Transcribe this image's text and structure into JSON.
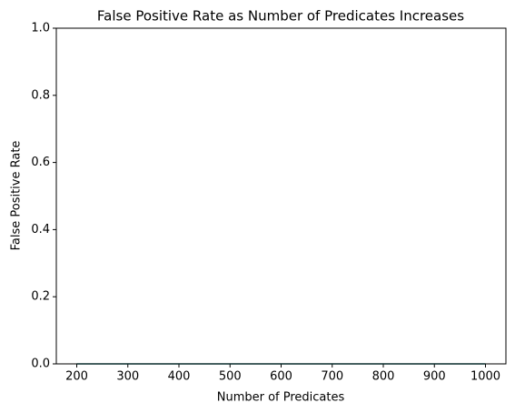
{
  "chart_data": {
    "type": "line",
    "title": "False Positive Rate as Number of Predicates Increases",
    "x_label": "Number of Predicates",
    "y_label": "False Positive Rate",
    "x": [
      200,
      300,
      400,
      500,
      600,
      700,
      800,
      900,
      1000
    ],
    "series": [
      {
        "color": "#1a8080",
        "values": [
          0,
          0,
          0,
          0,
          0,
          0,
          0,
          0,
          0
        ]
      }
    ],
    "xlim": [
      160,
      1040
    ],
    "xticks": [
      200,
      300,
      400,
      500,
      600,
      700,
      800,
      900,
      1000
    ],
    "ylim": [
      0,
      1
    ],
    "yticks": [
      {
        "value": 0,
        "label": "0.0"
      },
      {
        "value": 0.2,
        "label": "0.2"
      },
      {
        "value": 0.4,
        "label": "0.4"
      },
      {
        "value": 0.6,
        "label": "0.6"
      },
      {
        "value": 0.8,
        "label": "0.8"
      },
      {
        "value": 1,
        "label": "1.0"
      }
    ]
  }
}
